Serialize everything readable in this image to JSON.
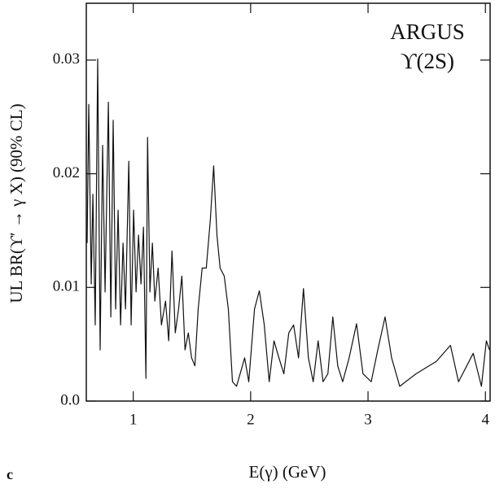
{
  "chart_data": {
    "type": "line",
    "x_label": "E(γ)  (GeV)",
    "y_label": "UL BR(ϒ′ → γ X)  (90% CL)",
    "annotations": [
      "ARGUS",
      "ϒ(2S)"
    ],
    "panel_label": "c",
    "xlim": [
      0.6,
      4.04
    ],
    "ylim": [
      0,
      0.035
    ],
    "xticks": [
      1,
      2,
      3,
      4
    ],
    "yticks": [
      {
        "value": 0,
        "label": "0.0"
      },
      0.01,
      0.02,
      0.03
    ],
    "x": [
      0.607,
      0.621,
      0.642,
      0.656,
      0.676,
      0.697,
      0.718,
      0.739,
      0.76,
      0.788,
      0.809,
      0.829,
      0.85,
      0.871,
      0.892,
      0.913,
      0.934,
      0.962,
      0.982,
      1.003,
      1.024,
      1.045,
      1.066,
      1.087,
      1.108,
      1.122,
      1.142,
      1.163,
      1.184,
      1.212,
      1.24,
      1.275,
      1.302,
      1.33,
      1.358,
      1.386,
      1.414,
      1.441,
      1.469,
      1.497,
      1.525,
      1.553,
      1.587,
      1.622,
      1.657,
      1.685,
      1.713,
      1.74,
      1.775,
      1.81,
      1.845,
      1.88,
      1.949,
      1.984,
      2.033,
      2.074,
      2.116,
      2.158,
      2.199,
      2.241,
      2.283,
      2.325,
      2.366,
      2.408,
      2.45,
      2.492,
      2.533,
      2.575,
      2.617,
      2.658,
      2.7,
      2.742,
      2.784,
      2.839,
      2.902,
      2.957,
      3.027,
      3.083,
      3.145,
      3.201,
      3.27,
      3.409,
      3.583,
      3.702,
      3.771,
      3.896,
      3.966,
      4.008,
      4.035
    ],
    "series": [
      {
        "color": "#111111",
        "values": [
          0.0139,
          0.0261,
          0.0103,
          0.0182,
          0.0067,
          0.0301,
          0.0045,
          0.0225,
          0.0096,
          0.0263,
          0.0074,
          0.0247,
          0.0081,
          0.0168,
          0.0067,
          0.0139,
          0.0081,
          0.0211,
          0.0067,
          0.0168,
          0.0096,
          0.0146,
          0.0103,
          0.0153,
          0.002,
          0.0232,
          0.0096,
          0.0139,
          0.0088,
          0.0117,
          0.0067,
          0.0088,
          0.0053,
          0.0132,
          0.006,
          0.0081,
          0.011,
          0.0045,
          0.006,
          0.0038,
          0.0031,
          0.0081,
          0.0117,
          0.0117,
          0.016,
          0.0207,
          0.0146,
          0.0117,
          0.011,
          0.0081,
          0.0017,
          0.0013,
          0.0038,
          0.0017,
          0.0081,
          0.0097,
          0.0067,
          0.0017,
          0.0053,
          0.0038,
          0.0024,
          0.006,
          0.0067,
          0.0038,
          0.0099,
          0.0038,
          0.0017,
          0.0053,
          0.0017,
          0.0024,
          0.0074,
          0.0031,
          0.0017,
          0.0038,
          0.0068,
          0.0024,
          0.0017,
          0.0045,
          0.0074,
          0.0038,
          0.0013,
          0.0024,
          0.0035,
          0.0049,
          0.0017,
          0.0042,
          0.0013,
          0.0053,
          0.0045
        ]
      }
    ]
  }
}
